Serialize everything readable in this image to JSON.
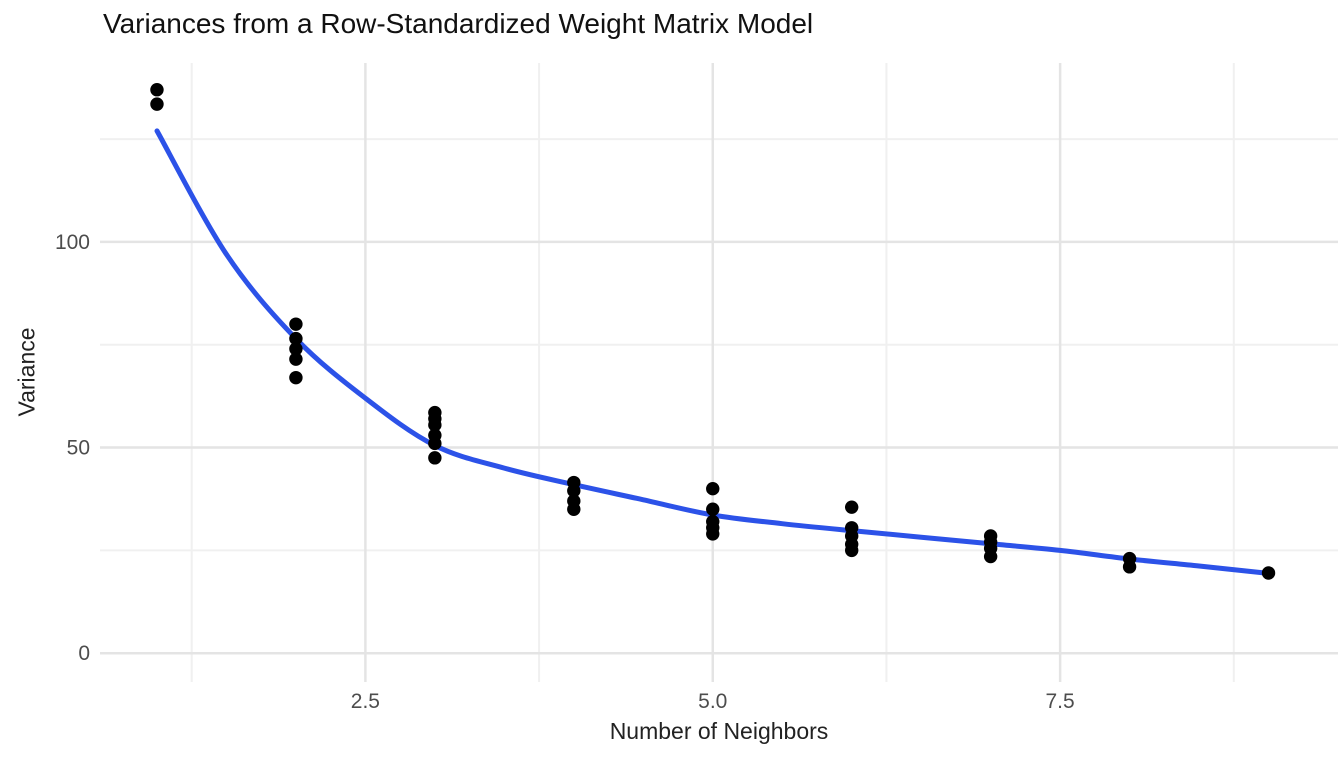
{
  "header": {
    "title": "Variances from a Row-Standardized Weight Matrix Model"
  },
  "chart_data": {
    "type": "scatter",
    "title": "Variances from a Row-Standardized Weight Matrix Model",
    "xlabel": "Number of Neighbors",
    "ylabel": "Variance",
    "xlim": [
      0.59,
      9.5
    ],
    "ylim": [
      -7,
      143.5
    ],
    "x_ticks": {
      "values": [
        2.5,
        5.0,
        7.5
      ],
      "labels": [
        "2.5",
        "5.0",
        "7.5"
      ]
    },
    "y_ticks": {
      "values": [
        0,
        50,
        100
      ],
      "labels": [
        "0",
        "50",
        "100"
      ]
    },
    "x_minor_gridlines": [
      1.25,
      3.75,
      6.25,
      8.75
    ],
    "y_minor_gridlines": [
      25,
      75,
      125
    ],
    "grid": "major-and-minor",
    "legend": "none",
    "series": [
      {
        "name": "observed-variances",
        "type": "scatter",
        "color": "#000000",
        "marker_radius": 6.7,
        "groups": [
          {
            "x": 1,
            "values": [
              137,
              133.5
            ]
          },
          {
            "x": 2,
            "values": [
              80,
              76.5,
              74,
              71.5,
              67
            ]
          },
          {
            "x": 3,
            "values": [
              58.5,
              57,
              55.5,
              53,
              51,
              47.5
            ]
          },
          {
            "x": 4,
            "values": [
              41.5,
              39.5,
              37,
              35
            ]
          },
          {
            "x": 5,
            "values": [
              40,
              35,
              32,
              30.5,
              29
            ]
          },
          {
            "x": 6,
            "values": [
              35.5,
              30.5,
              28.5,
              26.5,
              25
            ]
          },
          {
            "x": 7,
            "values": [
              28.5,
              27,
              25.5,
              23.5
            ]
          },
          {
            "x": 8,
            "values": [
              23,
              21
            ]
          },
          {
            "x": 9,
            "values": [
              19.5
            ]
          }
        ]
      },
      {
        "name": "smooth-fit-line",
        "type": "line",
        "color": "#2c52e8",
        "stroke_width": 5,
        "points": [
          [
            1,
            127
          ],
          [
            1.5,
            97
          ],
          [
            2,
            76.5
          ],
          [
            2.5,
            62
          ],
          [
            3,
            50.5
          ],
          [
            3.5,
            45
          ],
          [
            4,
            41
          ],
          [
            4.5,
            37.3
          ],
          [
            5,
            33.6
          ],
          [
            5.5,
            31.5
          ],
          [
            6,
            29.8
          ],
          [
            6.5,
            28.2
          ],
          [
            7,
            26.6
          ],
          [
            7.5,
            25
          ],
          [
            8,
            22.9
          ],
          [
            8.5,
            21.2
          ],
          [
            9,
            19.4
          ]
        ]
      }
    ],
    "colors": {
      "background": "#ffffff",
      "grid_major": "#e4e4e4",
      "grid_minor": "#f0f0f0",
      "axis_text": "#4d4d4d",
      "point": "#000000",
      "smooth_line": "#2c52e8"
    }
  }
}
